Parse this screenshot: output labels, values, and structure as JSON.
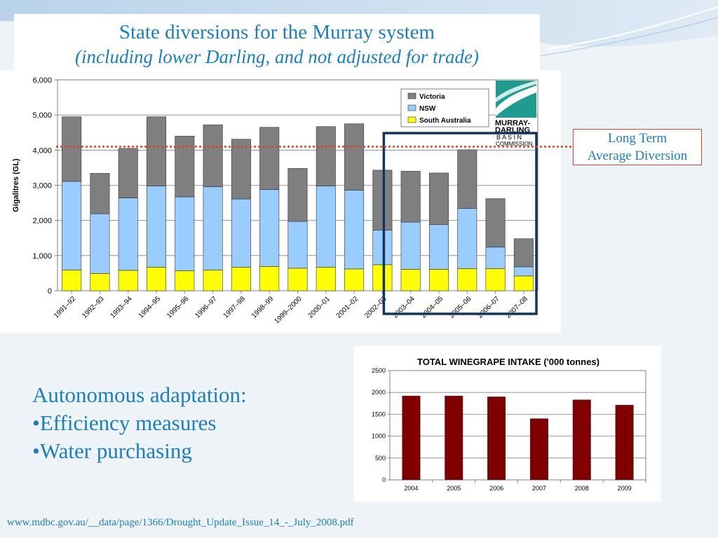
{
  "colors": {
    "victoria": "#7f7f7f",
    "nsw": "#99ccff",
    "south_australia": "#ffff00",
    "winegrape_bar": "#800000",
    "title_text": "#1a7fc0",
    "highlight_box": "#12345e",
    "average_line": "#e0401b"
  },
  "slide": {
    "title_line1": "State diversions for the Murray system",
    "title_line2": "(including lower Darling, and not adjusted for trade)",
    "ltad_line1": "Long Term",
    "ltad_line2": "Average Diversion",
    "bullets": [
      "Autonomous adaptation:",
      "•Efficiency measures",
      "•Water purchasing"
    ],
    "source": "www.mdbc.gov.au/__data/page/1366/Drought_Update_Issue_14_-_July_2008.pdf",
    "logo": {
      "line1": "MURRAY-",
      "line2": "DARLING",
      "line3": "B A S I N",
      "line4": "COMMISSION"
    }
  },
  "chart_data": [
    {
      "type": "bar",
      "stacked": true,
      "ylabel": "Gigalitres (GL)",
      "ylim": [
        0,
        6000
      ],
      "yticks": [
        "0",
        "1,000",
        "2,000",
        "3,000",
        "4,000",
        "5,000",
        "6,000"
      ],
      "grid": true,
      "legend_position": "top-right",
      "categories": [
        "1991–92",
        "1992–93",
        "1993–94",
        "1994–95",
        "1995–96",
        "1996–97",
        "1997–98",
        "1998–99",
        "1999–2000",
        "2000–01",
        "2001–02",
        "2002–03",
        "2003–04",
        "2004–05",
        "2005–06",
        "2006–07",
        "2007–08"
      ],
      "series": [
        {
          "name": "South Australia",
          "values": [
            590,
            490,
            580,
            670,
            570,
            590,
            670,
            690,
            640,
            670,
            620,
            740,
            610,
            610,
            630,
            630,
            420
          ]
        },
        {
          "name": "NSW",
          "values": [
            2520,
            1700,
            2060,
            2310,
            2100,
            2370,
            1940,
            2190,
            1330,
            2310,
            2240,
            980,
            1340,
            1270,
            1710,
            610,
            260
          ]
        },
        {
          "name": "Victoria",
          "values": [
            1840,
            1150,
            1410,
            1970,
            1730,
            1760,
            1700,
            1770,
            1510,
            1690,
            1890,
            1710,
            1450,
            1470,
            1670,
            1380,
            800
          ]
        }
      ],
      "legend_order": [
        "Victoria",
        "NSW",
        "South Australia"
      ],
      "long_term_average": 4100,
      "highlight_range": [
        "2002–03",
        "2007–08"
      ]
    },
    {
      "type": "bar",
      "title": "TOTAL WINEGRAPE INTAKE ('000 tonnes)",
      "ylim": [
        0,
        2500
      ],
      "yticks": [
        "0",
        "500",
        "1000",
        "1500",
        "2000",
        "2500"
      ],
      "grid": true,
      "categories": [
        "2004",
        "2005",
        "2006",
        "2007",
        "2008",
        "2009"
      ],
      "values": [
        1920,
        1920,
        1900,
        1400,
        1830,
        1710
      ]
    }
  ]
}
